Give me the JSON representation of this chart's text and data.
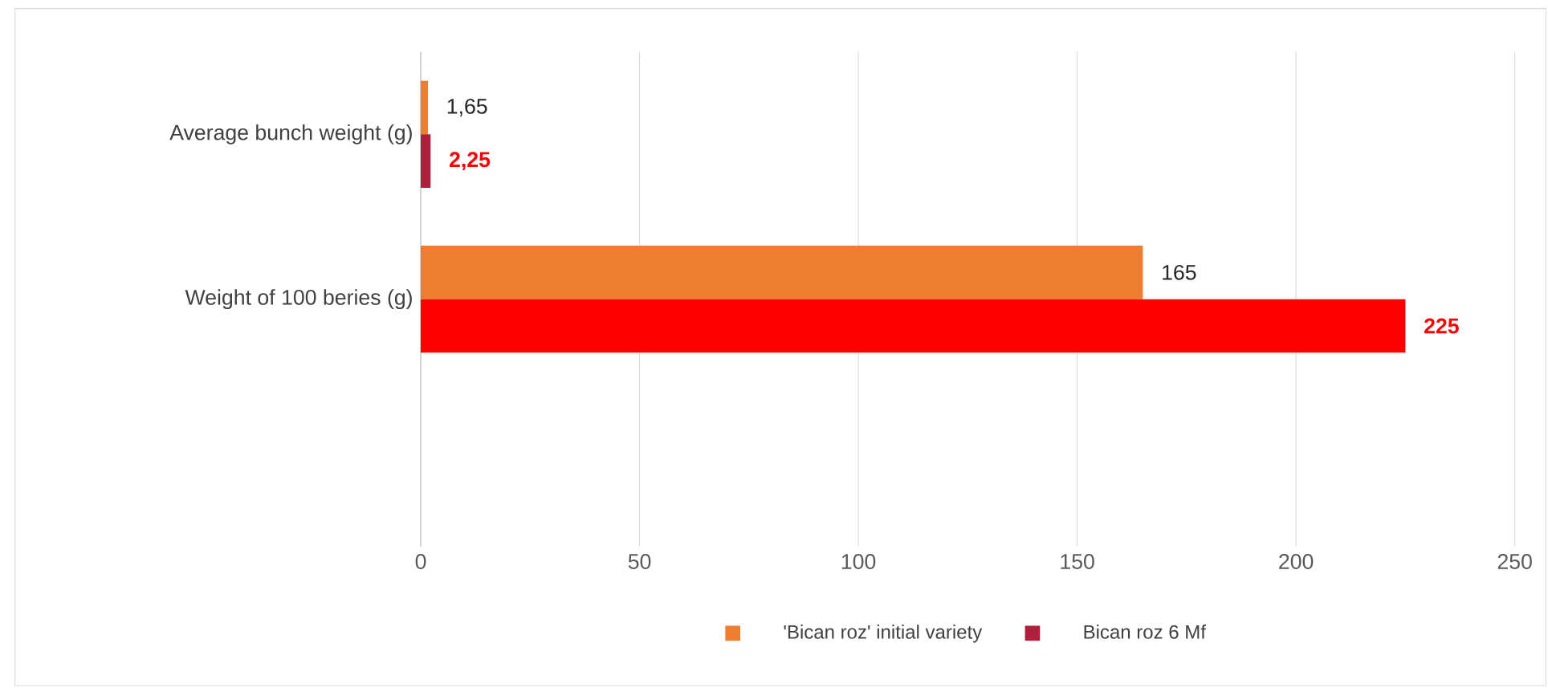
{
  "chart_data": {
    "type": "bar",
    "orientation": "horizontal",
    "categories": [
      "Average bunch weight (g)",
      "Weight of 100 beries (g)",
      null
    ],
    "series": [
      {
        "name": "'Bican roz' initial variety",
        "color": "#ed7d31",
        "colors": [
          "#ed7d31",
          "#ed7d31",
          null
        ],
        "values": [
          1.65,
          165,
          null
        ],
        "value_labels": [
          "1,65",
          "165",
          null
        ]
      },
      {
        "name": "Bican roz 6 Mf",
        "color": "#b0203c",
        "colors": [
          "#b0203c",
          "#ff0000",
          null
        ],
        "values": [
          2.25,
          225,
          null
        ],
        "value_labels": [
          "2,25",
          "225",
          null
        ]
      }
    ],
    "xlim": [
      0,
      250
    ],
    "xticks": [
      0,
      50,
      100,
      150,
      200,
      250
    ],
    "grid": "x",
    "legend": "bottom"
  }
}
